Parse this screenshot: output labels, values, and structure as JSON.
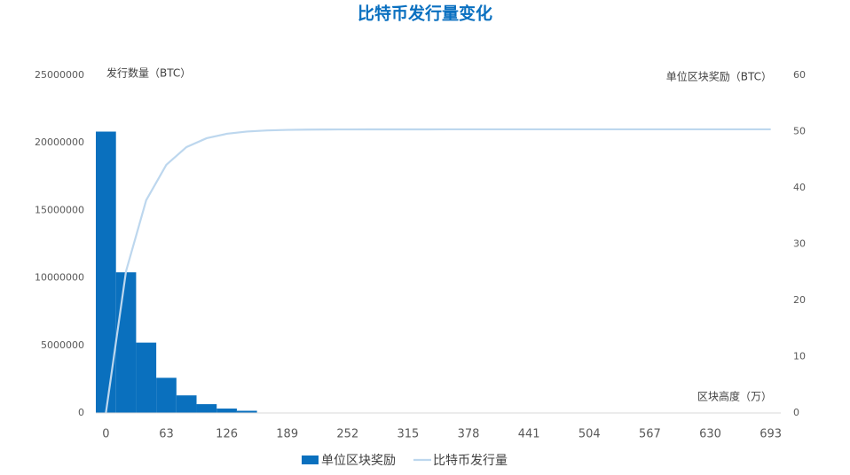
{
  "chart_data": {
    "type": "bar",
    "title": "比特币发行量变化",
    "y_label": "发行数量（BTC）",
    "y2_label": "单位区块奖励（BTC）",
    "x_label": "区块高度（万）",
    "categories": [
      "0",
      null,
      null,
      "63",
      null,
      null,
      "126",
      null,
      null,
      "189",
      null,
      null,
      "252",
      null,
      null,
      "315",
      null,
      null,
      "378",
      null,
      null,
      "441",
      null,
      null,
      "504",
      null,
      null,
      "567",
      null,
      null,
      "630",
      null,
      null,
      "693"
    ],
    "series": [
      {
        "name": "单位区块奖励",
        "type": "bar",
        "axis": "y2",
        "color": "#0a70be",
        "values": [
          50,
          25,
          12.5,
          6.25,
          3.125,
          1.5625,
          0.78125,
          0.390625,
          0,
          0,
          0,
          0,
          0,
          0,
          0,
          0,
          0,
          0,
          0,
          0,
          0,
          0,
          0,
          0,
          0,
          0,
          0,
          0,
          0,
          0,
          0,
          0,
          0,
          0
        ]
      },
      {
        "name": "比特币发行量",
        "type": "line",
        "color": "#bdd7ee",
        "values": [
          0,
          10500000,
          15750000,
          18375000,
          19687500,
          20343750,
          20671875,
          20835938,
          20917969,
          20958984,
          20979492,
          20989746,
          20994873,
          20997437,
          20998718,
          20999359,
          20999680,
          20999840,
          20999920,
          20999960,
          20999980,
          20999990,
          20999995,
          20999997,
          20999999,
          21000000,
          21000000,
          21000000,
          21000000,
          21000000,
          21000000,
          21000000,
          21000000,
          21000000
        ]
      }
    ],
    "ylim": [
      0,
      25000000
    ],
    "yticks": [
      0,
      5000000,
      10000000,
      15000000,
      20000000,
      25000000
    ],
    "y2lim": [
      0,
      60
    ],
    "y2ticks": [
      0,
      10,
      20,
      30,
      40,
      50,
      60
    ],
    "grid": false,
    "legend": "bottom"
  }
}
